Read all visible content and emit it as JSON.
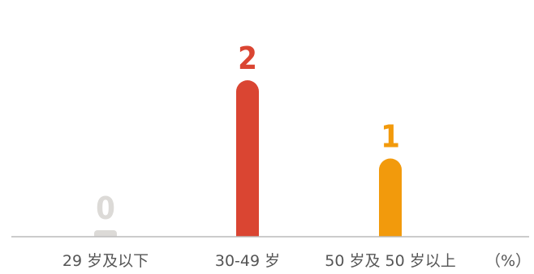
{
  "chart_data": {
    "type": "bar",
    "categories": [
      "29 岁及以下",
      "30-49 岁",
      "50 岁及 50 岁以上"
    ],
    "values": [
      0,
      2,
      1
    ],
    "value_labels": [
      "0",
      "2",
      "1"
    ],
    "unit": "（%）",
    "ylim": [
      0,
      2
    ],
    "grid": false,
    "legend": "none",
    "colors": [
      "#dcdad7",
      "#da4532",
      "#f29a0c"
    ],
    "axis_color": "#bbbbbb"
  }
}
